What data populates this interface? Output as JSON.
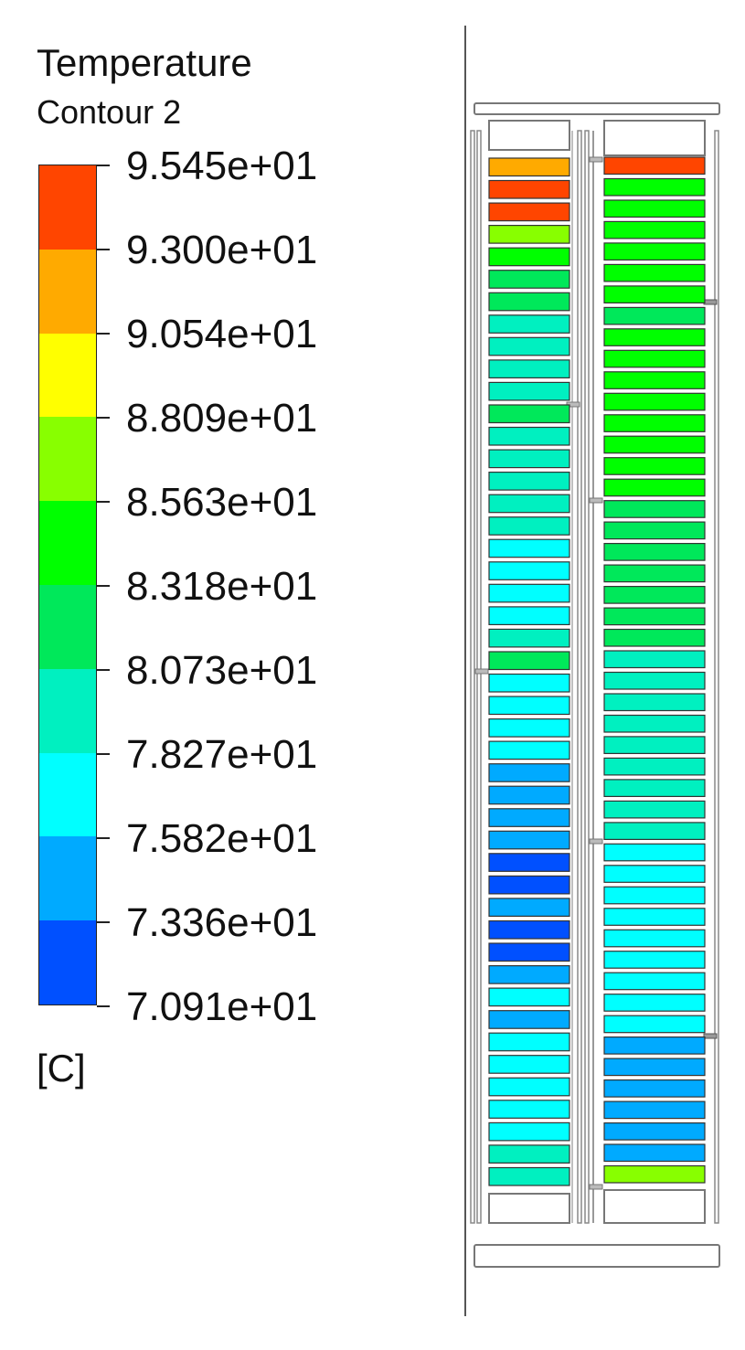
{
  "legend": {
    "title": "Temperature",
    "subtitle": "Contour 2",
    "unit": "[C]",
    "ticks": [
      "9.545e+01",
      "9.300e+01",
      "9.054e+01",
      "8.809e+01",
      "8.563e+01",
      "8.318e+01",
      "8.073e+01",
      "7.827e+01",
      "7.582e+01",
      "7.336e+01",
      "7.091e+01"
    ],
    "band_colors": [
      "#ff4500",
      "#ffaa00",
      "#ffff00",
      "#88ff00",
      "#00ff00",
      "#00e85a",
      "#00f0c0",
      "#00ffff",
      "#00aaff",
      "#0050ff"
    ]
  },
  "model": {
    "left_column_bands": [
      1,
      0,
      0,
      3,
      4,
      5,
      5,
      6,
      6,
      6,
      6,
      5,
      6,
      6,
      6,
      6,
      6,
      7,
      7,
      7,
      7,
      6,
      5,
      7,
      7,
      7,
      7,
      8,
      8,
      8,
      8,
      9,
      9,
      8,
      9,
      9,
      8,
      7,
      8,
      7,
      7,
      7,
      7,
      7,
      6,
      6
    ],
    "right_column_bands": [
      0,
      4,
      4,
      4,
      4,
      4,
      4,
      5,
      4,
      4,
      4,
      4,
      4,
      4,
      4,
      4,
      5,
      5,
      5,
      5,
      5,
      5,
      5,
      6,
      6,
      6,
      6,
      6,
      6,
      6,
      6,
      6,
      7,
      7,
      7,
      7,
      7,
      7,
      7,
      7,
      7,
      8,
      8,
      8,
      8,
      8,
      8,
      3
    ]
  }
}
